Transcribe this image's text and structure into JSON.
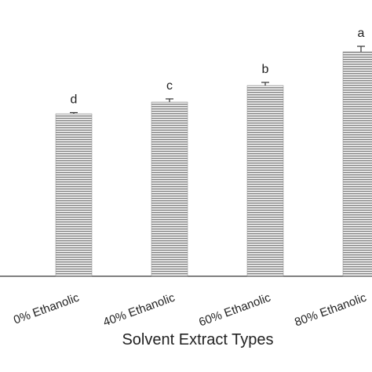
{
  "chart_data": {
    "type": "bar",
    "x_label": "Solvent Extract Types",
    "categories": [
      "0% Ethanolic",
      "40% Ethanolic",
      "60% Ethanolic",
      "80% Ethanolic"
    ],
    "values": [
      207,
      222,
      243,
      286
    ],
    "errors": [
      1.5,
      4,
      4,
      7
    ],
    "letters": [
      "d",
      "c",
      "b",
      "a"
    ],
    "color": "#888888",
    "ylim": [
      0,
      352
    ]
  }
}
